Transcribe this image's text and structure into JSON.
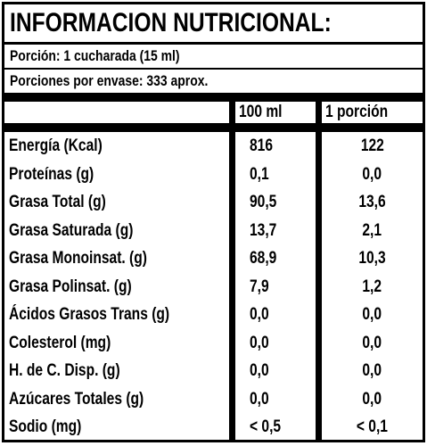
{
  "header": {
    "title": "INFORMACION NUTRICIONAL:",
    "serving": "Porción: 1 cucharada (15 ml)",
    "servings_per_container": "Porciones por envase: 333 aprox."
  },
  "table": {
    "columns": [
      "100 ml",
      "1 porción"
    ],
    "rows": [
      [
        "Energía (Kcal)",
        "816",
        "122"
      ],
      [
        "Proteínas (g)",
        "0,1",
        "0,0"
      ],
      [
        "Grasa Total (g)",
        "90,5",
        "13,6"
      ],
      [
        "Grasa Saturada (g)",
        "13,7",
        "2,1"
      ],
      [
        "Grasa Monoinsat. (g)",
        "68,9",
        "10,3"
      ],
      [
        "Grasa Polinsat. (g)",
        "7,9",
        "1,2"
      ],
      [
        "Ácidos Grasos Trans (g)",
        "0,0",
        "0,0"
      ],
      [
        "Colesterol (mg)",
        "0,0",
        "0,0"
      ],
      [
        "H. de C. Disp. (g)",
        "0,0",
        "0,0"
      ],
      [
        "Azúcares Totales (g)",
        "0,0",
        "0,0"
      ],
      [
        "Sodio (mg)",
        "< 0,5",
        "< 0,1"
      ]
    ]
  }
}
